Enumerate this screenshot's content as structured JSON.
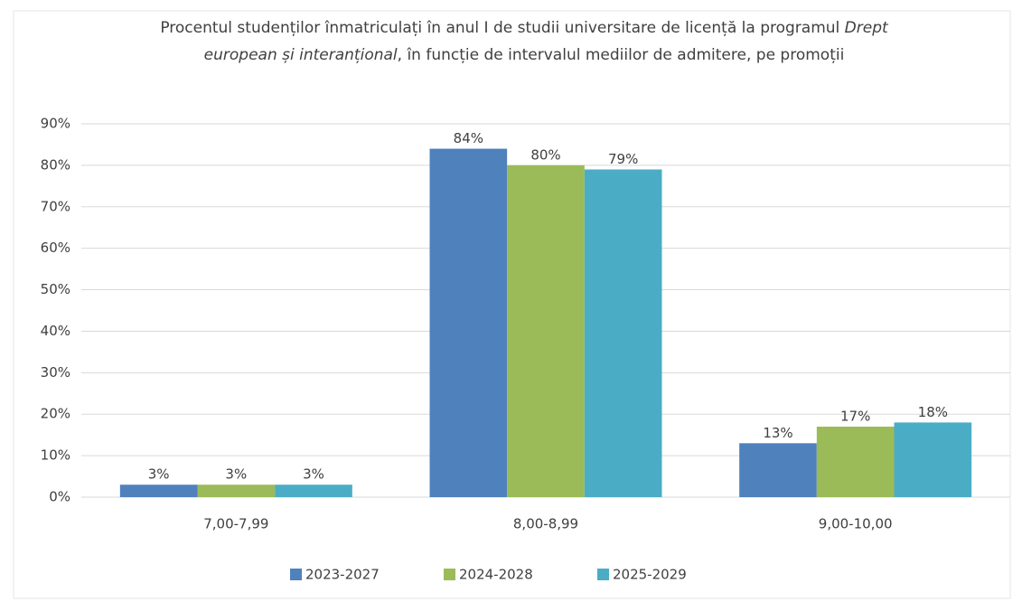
{
  "chart_data": {
    "type": "bar",
    "title": [
      "Procentul studenților înmatriculați în anul I de studii universitare de licență la programul ",
      "Drept european și interanțional",
      ", în funcție de intervalul mediilor de admitere, pe promoții"
    ],
    "categories": [
      "7,00-7,99",
      "8,00-8,99",
      "9,00-10,00"
    ],
    "series": [
      {
        "name": "2023-2027",
        "color": "#4f81bd",
        "values": [
          3,
          84,
          13
        ],
        "value_labels": [
          "3%",
          "84%",
          "13%"
        ]
      },
      {
        "name": "2024-2028",
        "color": "#9bbb59",
        "values": [
          3,
          80,
          17
        ],
        "value_labels": [
          "3%",
          "80%",
          "17%"
        ]
      },
      {
        "name": "2025-2029",
        "color": "#4bacc6",
        "values": [
          3,
          79,
          18
        ],
        "value_labels": [
          "3%",
          "79%",
          "18%"
        ]
      }
    ],
    "ylim": [
      0,
      90
    ],
    "yticks": [
      {
        "value": 0,
        "label": "0%"
      },
      {
        "value": 10,
        "label": "10%"
      },
      {
        "value": 20,
        "label": "20%"
      },
      {
        "value": 30,
        "label": "30%"
      },
      {
        "value": 40,
        "label": "40%"
      },
      {
        "value": 50,
        "label": "50%"
      },
      {
        "value": 60,
        "label": "60%"
      },
      {
        "value": 70,
        "label": "70%"
      },
      {
        "value": 80,
        "label": "80%"
      },
      {
        "value": 90,
        "label": "90%"
      }
    ],
    "grid": true,
    "legend": "bottom"
  }
}
